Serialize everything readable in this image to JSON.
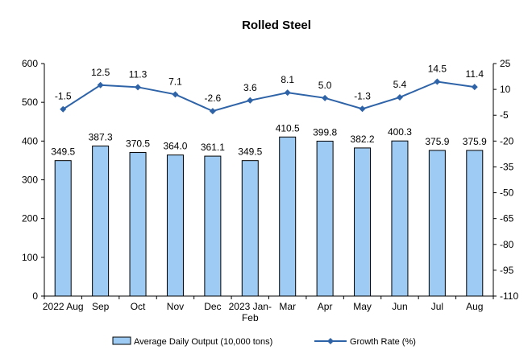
{
  "chart_data": {
    "type": "bar",
    "title": "Rolled Steel",
    "categories": [
      "2022 Aug",
      "Sep",
      "Oct",
      "Nov",
      "Dec",
      "2023 Jan-Feb",
      "Mar",
      "Apr",
      "May",
      "Jun",
      "Jul",
      "Aug"
    ],
    "category_lines": [
      [
        "2022 Aug"
      ],
      [
        "Sep"
      ],
      [
        "Oct"
      ],
      [
        "Nov"
      ],
      [
        "Dec"
      ],
      [
        "2023 Jan-",
        "Feb"
      ],
      [
        "Mar"
      ],
      [
        "Apr"
      ],
      [
        "May"
      ],
      [
        "Jun"
      ],
      [
        "Jul"
      ],
      [
        "Aug"
      ]
    ],
    "series": [
      {
        "name": "Average Daily Output (10,000 tons)",
        "type": "bar",
        "axis": "left",
        "values": [
          349.5,
          387.3,
          370.5,
          364.0,
          361.1,
          349.5,
          410.5,
          399.8,
          382.2,
          400.3,
          375.9,
          375.9
        ],
        "labels": [
          "349.5",
          "387.3",
          "370.5",
          "364.0",
          "361.1",
          "349.5",
          "410.5",
          "399.8",
          "382.2",
          "400.3",
          "375.9",
          "375.9"
        ],
        "color": "#9ecbf3"
      },
      {
        "name": "Growth Rate (%)",
        "type": "line",
        "axis": "right",
        "values": [
          -1.5,
          12.5,
          11.3,
          7.1,
          -2.6,
          3.6,
          8.1,
          5.0,
          -1.3,
          5.4,
          14.5,
          11.4
        ],
        "labels": [
          "-1.5",
          "12.5",
          "11.3",
          "7.1",
          "-2.6",
          "3.6",
          "8.1",
          "5.0",
          "-1.3",
          "5.4",
          "14.5",
          "11.4"
        ],
        "color": "#2e63a8"
      }
    ],
    "y_left": {
      "min": 0,
      "max": 600,
      "ticks": [
        0,
        100,
        200,
        300,
        400,
        500,
        600
      ]
    },
    "y_right": {
      "min": -110,
      "max": 25,
      "ticks": [
        25,
        10,
        -5,
        -20,
        -35,
        -50,
        -65,
        -80,
        -95,
        -110
      ]
    },
    "grid": false,
    "legend_position": "bottom"
  }
}
